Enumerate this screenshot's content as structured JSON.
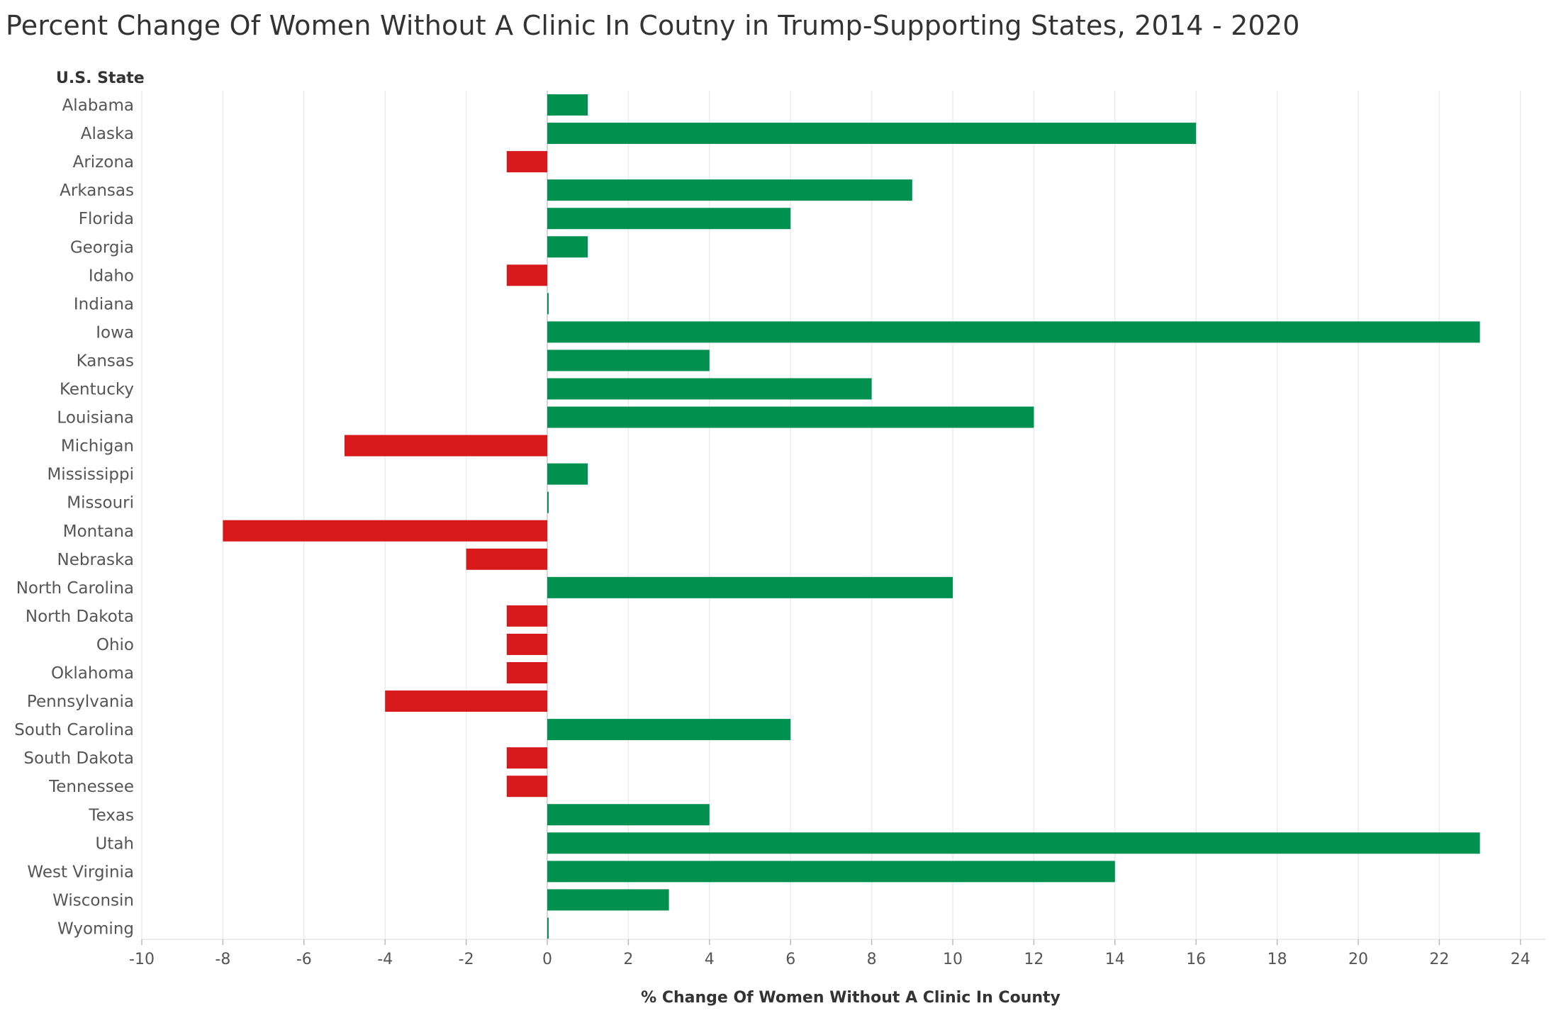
{
  "title": "Percent Change Of Women Without A Clinic In Coutny in Trump-Supporting States, 2014 - 2020",
  "colors": {
    "positive": "#009150",
    "negative": "#d7191c",
    "grid": "#ececec",
    "axis": "#e6e6e6",
    "zero_line": "#cccccc"
  },
  "chart_data": {
    "type": "bar",
    "orientation": "horizontal",
    "row_header": "U.S. State",
    "xlabel": "% Change Of Women Without A Clinic In County",
    "xlim": [
      -10,
      24
    ],
    "xticks": [
      -10,
      -8,
      -6,
      -4,
      -2,
      0,
      2,
      4,
      6,
      8,
      10,
      12,
      14,
      16,
      18,
      20,
      22,
      24
    ],
    "grid": true,
    "categories": [
      "Alabama",
      "Alaska",
      "Arizona",
      "Arkansas",
      "Florida",
      "Georgia",
      "Idaho",
      "Indiana",
      "Iowa",
      "Kansas",
      "Kentucky",
      "Louisiana",
      "Michigan",
      "Mississippi",
      "Missouri",
      "Montana",
      "Nebraska",
      "North Carolina",
      "North Dakota",
      "Ohio",
      "Oklahoma",
      "Pennsylvania",
      "South Carolina",
      "South Dakota",
      "Tennessee",
      "Texas",
      "Utah",
      "West Virginia",
      "Wisconsin",
      "Wyoming"
    ],
    "values": [
      1,
      16,
      -1,
      9,
      6,
      1,
      -1,
      0,
      23,
      4,
      8,
      12,
      -5,
      1,
      0,
      -8,
      -2,
      10,
      -1,
      -1,
      -1,
      -4,
      6,
      -1,
      -1,
      4,
      23,
      14,
      3,
      0
    ]
  }
}
